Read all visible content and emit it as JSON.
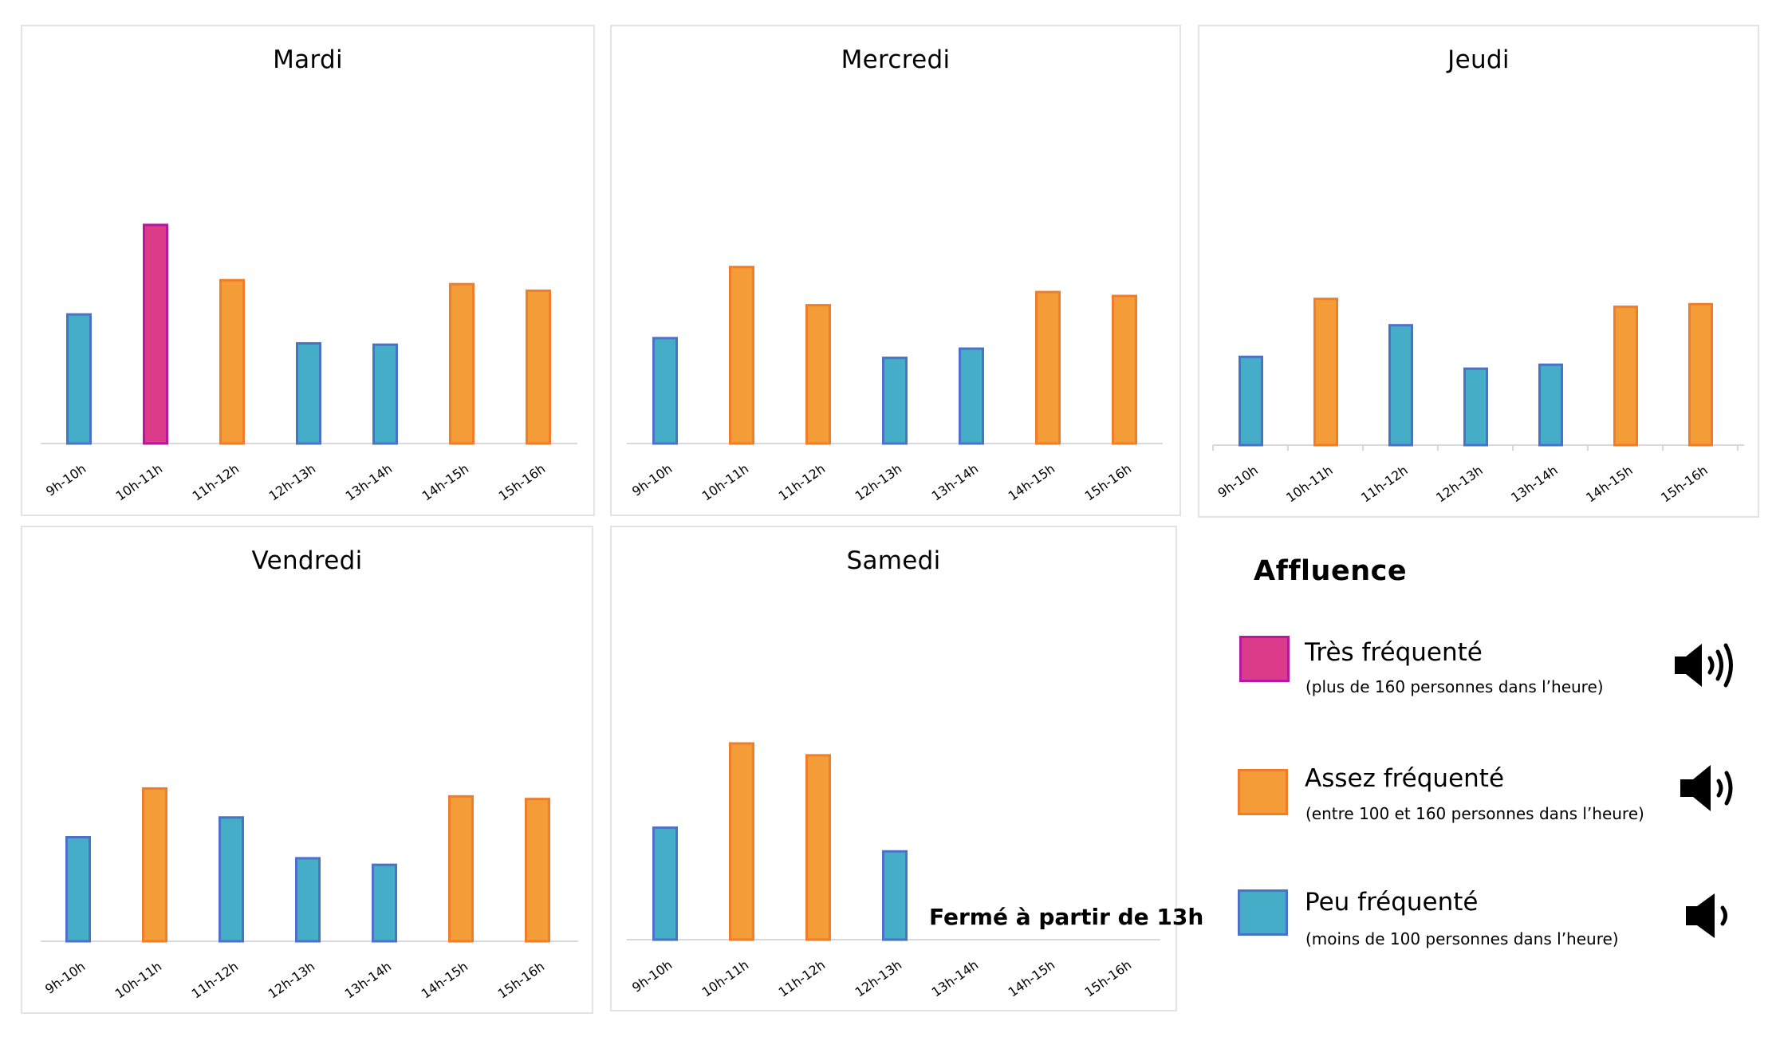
{
  "colors": {
    "tres": {
      "fill": "#dc3a8a",
      "stroke": "#b5179e"
    },
    "assez": {
      "fill": "#f39c38",
      "stroke": "#ef7d2a"
    },
    "peu": {
      "fill": "#45adc7",
      "stroke": "#4a72c9"
    },
    "axis": "#d9d9d9"
  },
  "chart_data": [
    {
      "type": "bar",
      "title": "Mardi",
      "categories": [
        "9h-10h",
        "10h-11h",
        "11h-12h",
        "12h-13h",
        "13h-14h",
        "14h-15h",
        "15h-16h"
      ],
      "values": [
        99,
        167,
        125,
        77,
        76,
        122,
        117
      ],
      "levels": [
        "peu",
        "tres",
        "assez",
        "peu",
        "peu",
        "assez",
        "assez"
      ],
      "xlabel": "",
      "ylabel": "personnes dans l'heure",
      "ylim": [
        0,
        200
      ],
      "grid": false
    },
    {
      "type": "bar",
      "title": "Mercredi",
      "categories": [
        "9h-10h",
        "10h-11h",
        "11h-12h",
        "12h-13h",
        "13h-14h",
        "14h-15h",
        "15h-16h"
      ],
      "values": [
        81,
        135,
        106,
        66,
        73,
        116,
        113
      ],
      "levels": [
        "peu",
        "assez",
        "assez",
        "peu",
        "peu",
        "assez",
        "assez"
      ],
      "xlabel": "",
      "ylabel": "personnes dans l'heure",
      "ylim": [
        0,
        200
      ],
      "grid": false
    },
    {
      "type": "bar",
      "title": "Jeudi",
      "categories": [
        "9h-10h",
        "10h-11h",
        "11h-12h",
        "12h-13h",
        "13h-14h",
        "14h-15h",
        "15h-16h"
      ],
      "values": [
        68,
        112,
        92,
        59,
        62,
        106,
        108
      ],
      "levels": [
        "peu",
        "assez",
        "peu",
        "peu",
        "peu",
        "assez",
        "assez"
      ],
      "xlabel": "",
      "ylabel": "personnes dans l'heure",
      "ylim": [
        0,
        200
      ],
      "grid": false
    },
    {
      "type": "bar",
      "title": "Vendredi",
      "categories": [
        "9h-10h",
        "10h-11h",
        "11h-12h",
        "12h-13h",
        "13h-14h",
        "14h-15h",
        "15h-16h"
      ],
      "values": [
        80,
        117,
        95,
        64,
        59,
        111,
        109
      ],
      "levels": [
        "peu",
        "assez",
        "peu",
        "peu",
        "peu",
        "assez",
        "assez"
      ],
      "xlabel": "",
      "ylabel": "personnes dans l'heure",
      "ylim": [
        0,
        200
      ],
      "grid": false
    },
    {
      "type": "bar",
      "title": "Samedi",
      "categories": [
        "9h-10h",
        "10h-11h",
        "11h-12h",
        "12h-13h",
        "13h-14h",
        "14h-15h",
        "15h-16h"
      ],
      "values": [
        86,
        150,
        141,
        68,
        null,
        null,
        null
      ],
      "levels": [
        "peu",
        "assez",
        "assez",
        "peu",
        null,
        null,
        null
      ],
      "annotation": "Fermé à partir de 13h",
      "xlabel": "",
      "ylabel": "personnes dans l'heure",
      "ylim": [
        0,
        200
      ],
      "grid": false
    }
  ],
  "legend": {
    "title": "Affluence",
    "items": [
      {
        "level": "tres",
        "label": "Très fréquenté",
        "detail": "(plus de 160 personnes dans l’heure)",
        "icon": "speaker-loud-icon"
      },
      {
        "level": "assez",
        "label": "Assez fréquenté",
        "detail": "(entre 100 et 160 personnes dans l’heure)",
        "icon": "speaker-medium-icon"
      },
      {
        "level": "peu",
        "label": "Peu fréquenté",
        "detail": "(moins de 100 personnes dans l’heure)",
        "icon": "speaker-low-icon"
      }
    ]
  }
}
